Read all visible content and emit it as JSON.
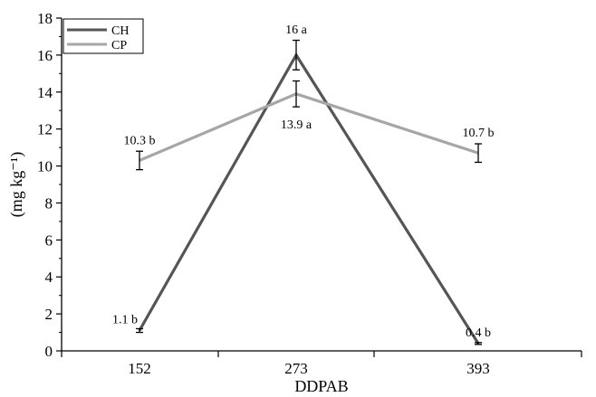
{
  "chart_data": {
    "type": "line",
    "x": [
      152,
      273,
      393
    ],
    "xlabel": "DDPAB",
    "ylabel": "(mg kg⁻¹)",
    "ylim": [
      0,
      18
    ],
    "yticks": [
      0,
      2,
      4,
      6,
      8,
      10,
      12,
      14,
      16,
      18
    ],
    "grid": false,
    "legend_position": "top-left",
    "series": [
      {
        "name": "CH",
        "color": "#555555",
        "values": [
          1.1,
          16.0,
          0.4
        ],
        "errors": [
          0.1,
          0.8,
          0.05
        ],
        "labels": [
          "1.1 b",
          "16 a",
          "0.4 b"
        ]
      },
      {
        "name": "CP",
        "color": "#a6a6a6",
        "values": [
          10.3,
          13.9,
          10.7
        ],
        "errors": [
          0.5,
          0.7,
          0.5
        ],
        "labels": [
          "10.3 b",
          "13.9 a",
          "10.7 b"
        ]
      }
    ]
  }
}
